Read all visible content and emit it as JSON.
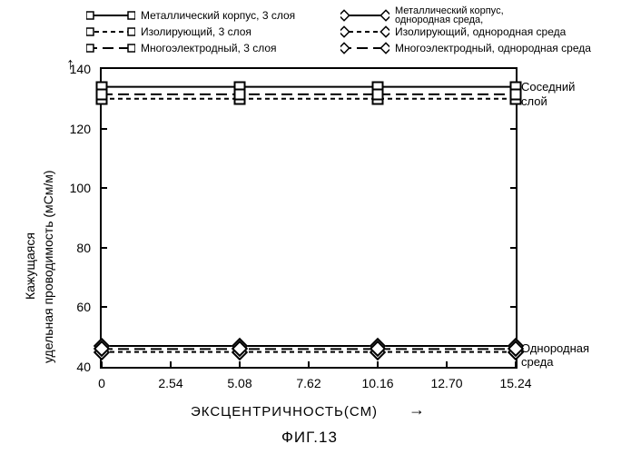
{
  "figure_label": "ФИГ.13",
  "y_axis_label": "Кажущаяся\nудельная проводимость (мСм/м)",
  "x_axis_label": "ЭКСЦЕНТРИЧНОСТЬ(СМ)",
  "chart": {
    "type": "line",
    "background_color": "#ffffff",
    "border_color": "#000000",
    "line_color": "#000000",
    "line_width": 2,
    "ylim": [
      40,
      140
    ],
    "ytick_step": 20,
    "yticks": [
      40,
      60,
      80,
      100,
      120,
      140
    ],
    "xlim": [
      0,
      15.24
    ],
    "xticks_numeric": [
      0,
      2.54,
      5.08,
      7.62,
      10.16,
      12.7,
      15.24
    ],
    "xticks": [
      "0",
      "2.54",
      "5.08",
      "7.62",
      "10.16",
      "12.70",
      "15.24"
    ],
    "marker_x": [
      0,
      5.08,
      10.16,
      15.24
    ],
    "title_fontsize": 14,
    "label_fontsize": 14,
    "legend_position": "top"
  },
  "legend": [
    {
      "id": "s1",
      "label": "Металлический корпус, 3 слоя",
      "marker": "square",
      "dash": "solid",
      "col": "left"
    },
    {
      "id": "s2",
      "label": "Изолирующий, 3 слоя",
      "marker": "square",
      "dash": "short-dash",
      "col": "left"
    },
    {
      "id": "s3",
      "label": "Многоэлектродный, 3 слоя",
      "marker": "square",
      "dash": "long-dash",
      "col": "left"
    },
    {
      "id": "s4a",
      "label": "Металлический корпус,",
      "marker": "diamond",
      "dash": "solid",
      "col": "right"
    },
    {
      "id": "s4b",
      "label": "однородная среда,",
      "marker": "none",
      "dash": "none",
      "col": "right"
    },
    {
      "id": "s5",
      "label": "Изолирующий, однородная среда",
      "marker": "diamond",
      "dash": "short-dash",
      "col": "right"
    },
    {
      "id": "s6",
      "label": "Многоэлектродный, однородная среда",
      "marker": "diamond",
      "dash": "long-dash",
      "col": "right"
    }
  ],
  "series": [
    {
      "id": "s1",
      "y": 134,
      "marker": "square",
      "dash": "solid"
    },
    {
      "id": "s2",
      "y": 130,
      "marker": "square",
      "dash": "short-dash"
    },
    {
      "id": "s3",
      "y": 131.5,
      "marker": "square",
      "dash": "long-dash"
    },
    {
      "id": "s4",
      "y": 47,
      "marker": "diamond",
      "dash": "solid"
    },
    {
      "id": "s5",
      "y": 45,
      "marker": "diamond",
      "dash": "short-dash"
    },
    {
      "id": "s6",
      "y": 46,
      "marker": "diamond",
      "dash": "long-dash"
    }
  ],
  "side_labels": [
    {
      "text": "Соседний",
      "y": 134
    },
    {
      "text": "слой",
      "y": 129
    },
    {
      "text": "Однородная среда",
      "y": 46
    }
  ],
  "colors": {
    "text": "#000000",
    "background": "#ffffff",
    "axis": "#000000"
  }
}
